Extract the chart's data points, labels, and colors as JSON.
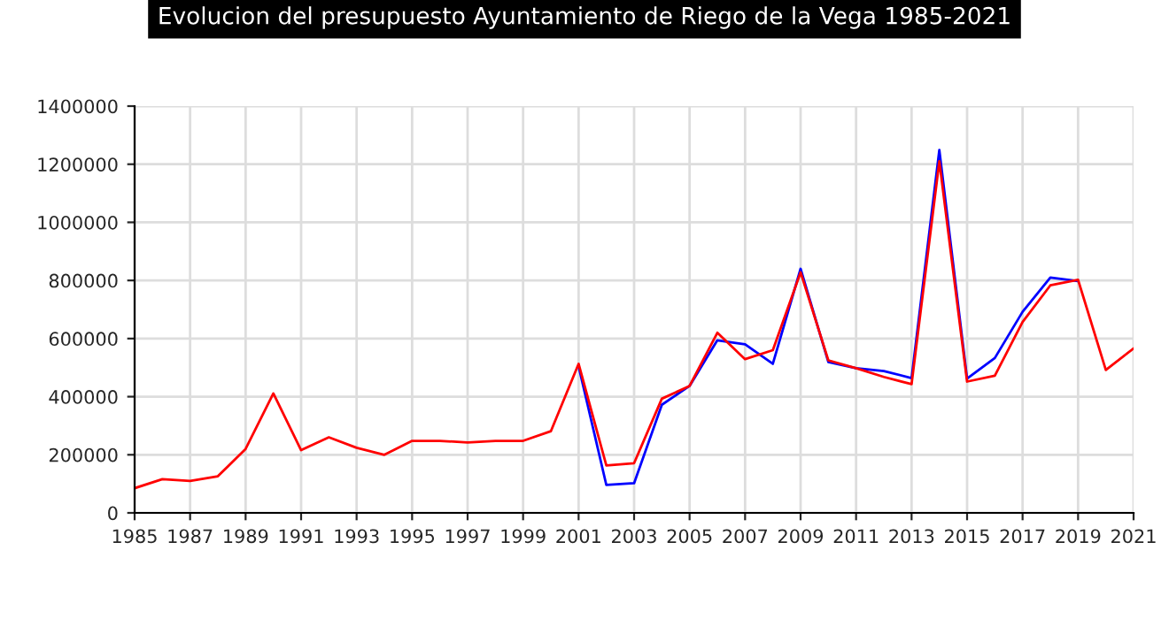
{
  "chart_data": {
    "type": "line",
    "title": "Evolucion del presupuesto Ayuntamiento de Riego de la Vega 1985-2021",
    "x": [
      1985,
      1986,
      1987,
      1988,
      1989,
      1990,
      1991,
      1992,
      1993,
      1994,
      1995,
      1996,
      1997,
      1998,
      1999,
      2000,
      2001,
      2002,
      2003,
      2004,
      2005,
      2006,
      2007,
      2008,
      2009,
      2010,
      2011,
      2012,
      2013,
      2014,
      2015,
      2016,
      2017,
      2018,
      2019,
      2020,
      2021
    ],
    "series": [
      {
        "color": "#0000ff",
        "values": [
          null,
          null,
          null,
          null,
          null,
          null,
          null,
          null,
          null,
          null,
          null,
          null,
          null,
          null,
          null,
          null,
          505000,
          96000,
          102000,
          372000,
          437000,
          594000,
          580000,
          513000,
          840000,
          519000,
          498000,
          488000,
          464000,
          1249000,
          462000,
          533000,
          692000,
          810000,
          798000,
          null,
          null
        ]
      },
      {
        "color": "#ff0000",
        "values": [
          85000,
          116000,
          110000,
          126000,
          220000,
          411000,
          216000,
          260000,
          224000,
          200000,
          248000,
          248000,
          242000,
          248000,
          248000,
          281000,
          513000,
          163000,
          171000,
          393000,
          437000,
          620000,
          529000,
          560000,
          828000,
          525000,
          498000,
          468000,
          443000,
          1210000,
          452000,
          472000,
          657000,
          783000,
          802000,
          492000,
          566000
        ]
      }
    ],
    "xlim": [
      1985,
      2021
    ],
    "ylim": [
      0,
      1400000
    ],
    "xticks": [
      1985,
      1987,
      1989,
      1991,
      1993,
      1995,
      1997,
      1999,
      2001,
      2003,
      2005,
      2007,
      2009,
      2011,
      2013,
      2015,
      2017,
      2019,
      2021
    ],
    "yticks": [
      0,
      200000,
      400000,
      600000,
      800000,
      1000000,
      1200000,
      1400000
    ],
    "grid": true
  }
}
